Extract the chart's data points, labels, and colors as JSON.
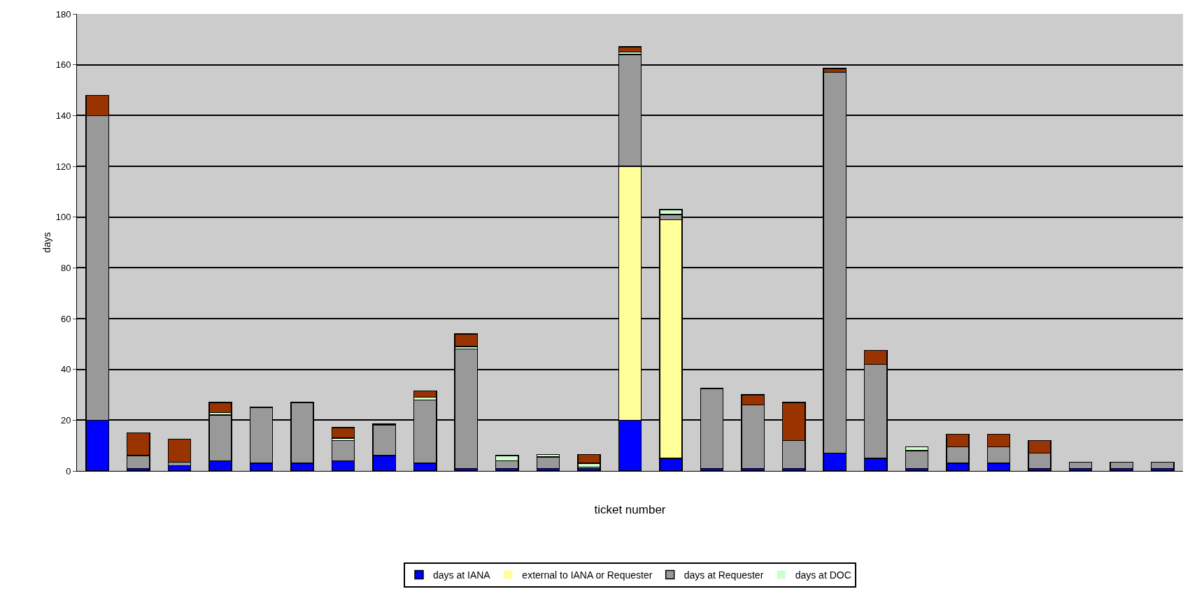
{
  "chart_data": {
    "type": "bar",
    "stacked": true,
    "xlabel": "ticket number",
    "ylabel": "days",
    "categories": [
      null,
      null,
      null,
      null,
      null,
      null,
      null,
      null,
      null,
      null,
      null,
      null,
      null,
      null,
      null,
      null,
      null,
      null,
      null,
      null,
      null,
      null,
      null,
      null,
      null,
      null,
      null
    ],
    "series": [
      {
        "name": "days at IANA",
        "color": "#0000ff",
        "values": [
          20,
          1,
          2,
          4,
          3,
          3,
          4,
          6,
          3,
          1,
          1,
          1,
          1,
          20,
          5,
          1,
          1,
          1,
          7,
          5,
          1,
          3,
          3,
          1,
          1,
          1,
          1
        ]
      },
      {
        "name": "external to IANA or Requester",
        "color": "#ffff99",
        "values": [
          0,
          0,
          0,
          0,
          0,
          0,
          0,
          0,
          0,
          0,
          0,
          0,
          0,
          100,
          94,
          0,
          0,
          0,
          0,
          0,
          0,
          0,
          0,
          0,
          0,
          0,
          0
        ]
      },
      {
        "name": "days at Requester",
        "color": "#999999",
        "values": [
          120,
          5,
          1.5,
          18,
          22,
          24,
          8,
          12,
          25,
          47,
          3,
          4.5,
          0.5,
          44,
          2,
          31.5,
          25,
          11,
          150,
          37,
          7,
          6.5,
          6.5,
          6,
          2.5,
          2.5,
          2.5
        ]
      },
      {
        "name": "days at DOC",
        "color": "#ccffcc",
        "values": [
          0,
          0,
          0,
          1,
          0,
          0,
          1,
          0.5,
          1,
          1,
          2,
          1,
          1.5,
          1,
          2,
          0,
          0,
          0,
          0,
          0,
          1.5,
          0,
          0,
          0,
          0,
          0,
          0
        ]
      },
      {
        "color": "#993300",
        "values": [
          8,
          9,
          9,
          4,
          0,
          0,
          4,
          0,
          2.5,
          5,
          0,
          0,
          3.5,
          2,
          0,
          0,
          4,
          15,
          1.5,
          5.5,
          0,
          5,
          5,
          5,
          0,
          0,
          0
        ]
      }
    ],
    "ylim": [
      0,
      180
    ],
    "yticks": [
      0,
      20,
      40,
      60,
      80,
      100,
      120,
      140,
      160,
      180
    ],
    "grid": "y",
    "legend": "bottom"
  }
}
